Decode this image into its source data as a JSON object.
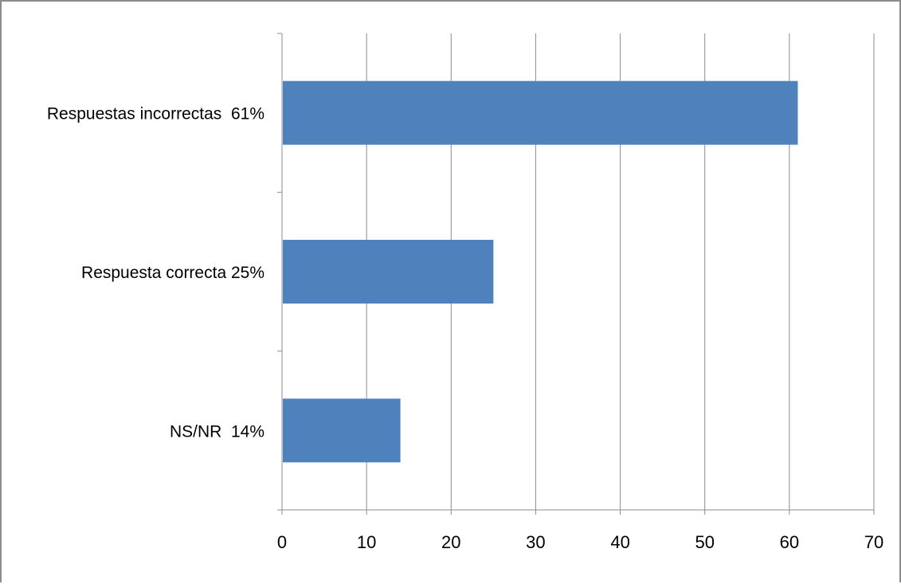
{
  "chart_data": {
    "type": "bar",
    "orientation": "horizontal",
    "categories": [
      "Respuestas incorrectas  61%",
      "Respuesta correcta 25%",
      "NS/NR  14%"
    ],
    "values": [
      61,
      25,
      14
    ],
    "title": "",
    "xlabel": "",
    "ylabel": "",
    "xlim": [
      0,
      70
    ],
    "ticks": [
      0,
      10,
      20,
      30,
      40,
      50,
      60,
      70
    ],
    "grid": "vertical",
    "legend": "none",
    "bar_color": "#4f81bd",
    "grid_color": "#8c8c8c"
  }
}
